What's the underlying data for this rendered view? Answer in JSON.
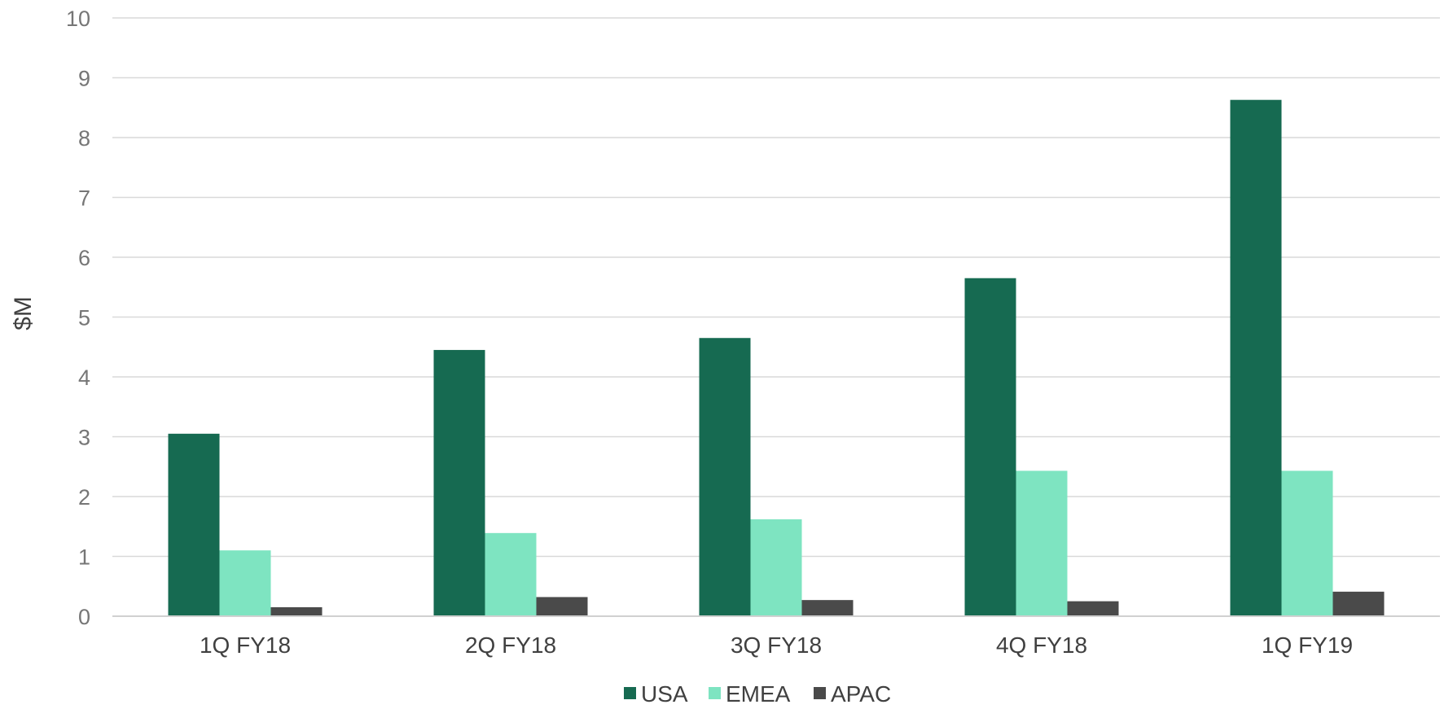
{
  "chart_data": {
    "type": "bar",
    "title": "",
    "xlabel": "",
    "ylabel": "$M",
    "ylim": [
      0,
      10
    ],
    "yticks": [
      "0",
      "1",
      "2",
      "3",
      "4",
      "5",
      "6",
      "7",
      "8",
      "9",
      "10"
    ],
    "grid": true,
    "legend_position": "bottom",
    "categories": [
      "1Q FY18",
      "2Q FY18",
      "3Q FY18",
      "4Q FY18",
      "1Q FY19"
    ],
    "series": [
      {
        "name": "USA",
        "color": "#166a51",
        "values": [
          3.05,
          4.45,
          4.65,
          5.65,
          8.63
        ]
      },
      {
        "name": "EMEA",
        "color": "#7ee4c1",
        "values": [
          1.1,
          1.39,
          1.62,
          2.43,
          2.43
        ]
      },
      {
        "name": "APAC",
        "color": "#4a4a4a",
        "values": [
          0.15,
          0.32,
          0.27,
          0.25,
          0.41
        ]
      }
    ]
  }
}
